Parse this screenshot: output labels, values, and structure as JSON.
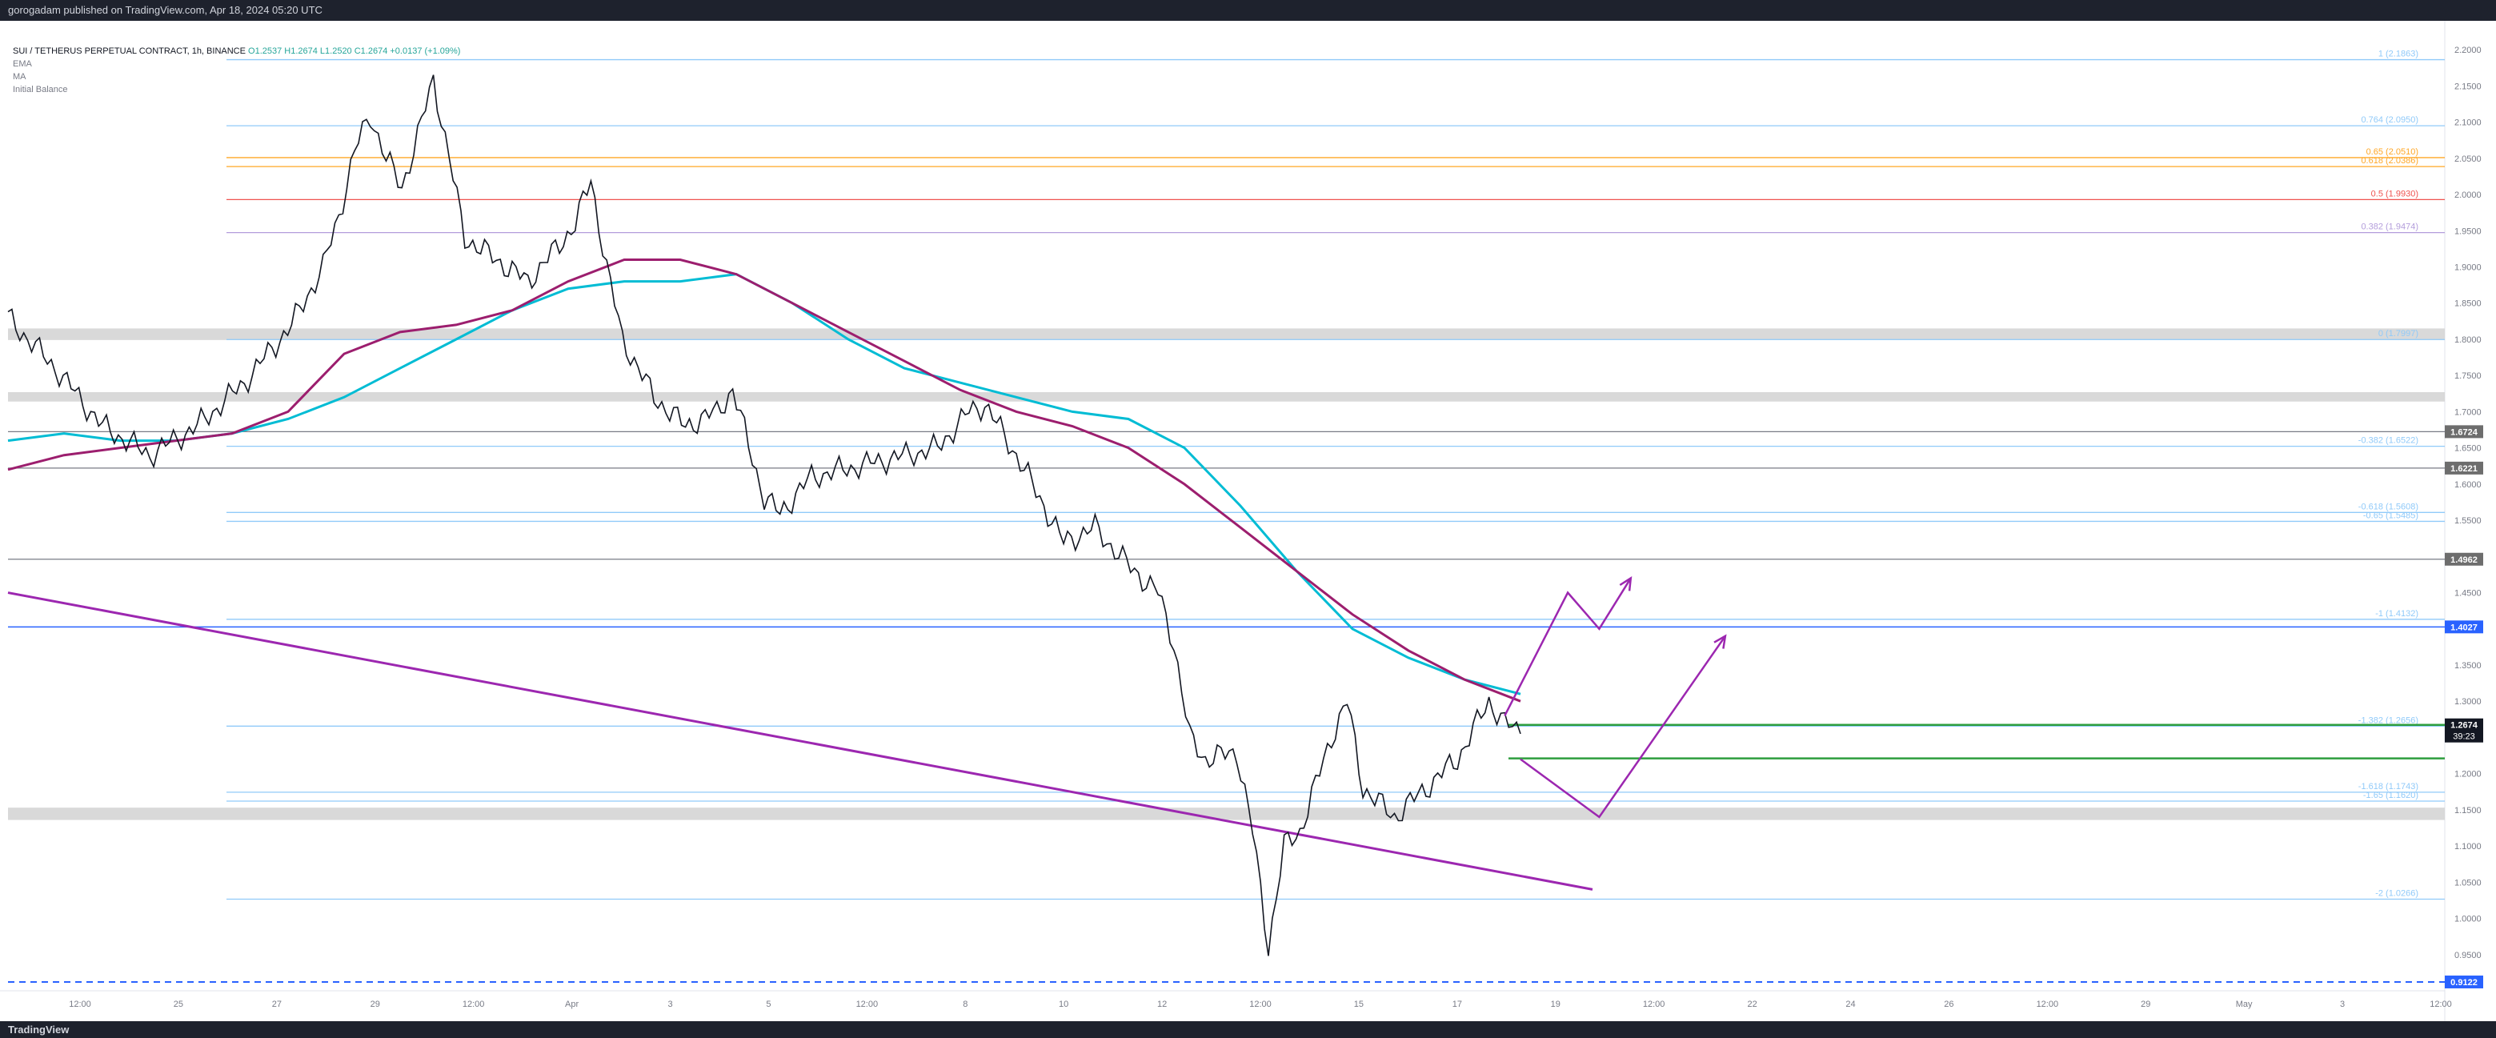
{
  "header": {
    "published": "gorogadam published on TradingView.com, Apr 18, 2024 05:20 UTC"
  },
  "legend": {
    "symbol": "SUI / TETHERUS PERPETUAL CONTRACT, 1h, BINANCE",
    "ohlc": "O1.2537 H1.2674 L1.2520 C1.2674 +0.0137 (+1.09%)",
    "indicators": [
      "EMA",
      "MA",
      "Initial Balance"
    ]
  },
  "footer": {
    "brand": "TradingView"
  },
  "colors": {
    "ema": "#00bcd4",
    "ma": "#9c1e6e",
    "trendline": "#9c27b0",
    "projection": "#9c27b0",
    "support_zone": "#d5d5d5",
    "blue_line": "#2962ff",
    "green_line": "#2e9e3e",
    "fib_light": "#90caf9",
    "fib_red": "#ef5350",
    "fib_orange": "#ffa726",
    "fib_purple": "#b39ddb"
  },
  "chart_data": {
    "type": "line",
    "title": "",
    "ylim": [
      0.9,
      2.24
    ],
    "y_ticks": [
      "2.2000",
      "2.1500",
      "2.1000",
      "2.0500",
      "2.0000",
      "1.9500",
      "1.9000",
      "1.8500",
      "1.8000",
      "1.7500",
      "1.7000",
      "1.6500",
      "1.6000",
      "1.5500",
      "1.5000",
      "1.4500",
      "1.4000",
      "1.3500",
      "1.3000",
      "1.2500",
      "1.2000",
      "1.1500",
      "1.1000",
      "1.0500",
      "1.0000",
      "0.9500"
    ],
    "x_ticks": [
      "12:00",
      "25",
      "27",
      "29",
      "12:00",
      "Apr",
      "3",
      "5",
      "12:00",
      "8",
      "10",
      "12",
      "12:00",
      "15",
      "17",
      "19",
      "12:00",
      "22",
      "24",
      "26",
      "12:00",
      "29",
      "May",
      "3",
      "12:00"
    ],
    "price_path": [
      [
        0,
        1.83
      ],
      [
        3,
        1.76
      ],
      [
        6,
        1.68
      ],
      [
        9,
        1.64
      ],
      [
        12,
        1.68
      ],
      [
        15,
        1.74
      ],
      [
        18,
        1.82
      ],
      [
        20,
        1.9
      ],
      [
        21,
        1.97
      ],
      [
        22,
        2.06
      ],
      [
        23,
        2.11
      ],
      [
        24,
        2.05
      ],
      [
        25,
        2.01
      ],
      [
        26,
        2.08
      ],
      [
        27,
        2.16
      ],
      [
        28,
        2.05
      ],
      [
        29,
        1.94
      ],
      [
        31,
        1.91
      ],
      [
        33,
        1.88
      ],
      [
        35,
        1.93
      ],
      [
        36,
        1.96
      ],
      [
        37,
        2.02
      ],
      [
        38,
        1.9
      ],
      [
        39,
        1.8
      ],
      [
        40,
        1.76
      ],
      [
        41,
        1.72
      ],
      [
        43,
        1.68
      ],
      [
        45,
        1.7
      ],
      [
        46,
        1.73
      ],
      [
        48,
        1.58
      ],
      [
        49,
        1.56
      ],
      [
        51,
        1.61
      ],
      [
        55,
        1.63
      ],
      [
        59,
        1.65
      ],
      [
        61,
        1.7
      ],
      [
        62,
        1.71
      ],
      [
        64,
        1.64
      ],
      [
        66,
        1.56
      ],
      [
        67,
        1.52
      ],
      [
        69,
        1.54
      ],
      [
        71,
        1.49
      ],
      [
        73,
        1.45
      ],
      [
        74,
        1.38
      ],
      [
        75,
        1.25
      ],
      [
        76,
        1.22
      ],
      [
        78,
        1.23
      ],
      [
        79,
        1.12
      ],
      [
        80,
        0.96
      ],
      [
        81,
        1.1
      ],
      [
        82,
        1.12
      ],
      [
        84,
        1.25
      ],
      [
        85,
        1.3
      ],
      [
        86,
        1.18
      ],
      [
        88,
        1.14
      ],
      [
        90,
        1.18
      ],
      [
        92,
        1.22
      ],
      [
        93,
        1.26
      ],
      [
        94,
        1.3
      ],
      [
        95,
        1.27
      ],
      [
        96,
        1.255
      ]
    ],
    "price_x_domain": [
      0,
      96
    ],
    "series": [
      {
        "name": "EMA",
        "values": [
          1.66,
          1.67,
          1.66,
          1.66,
          1.67,
          1.69,
          1.72,
          1.76,
          1.8,
          1.84,
          1.87,
          1.88,
          1.88,
          1.89,
          1.85,
          1.8,
          1.76,
          1.74,
          1.72,
          1.7,
          1.69,
          1.65,
          1.57,
          1.48,
          1.4,
          1.36,
          1.33,
          1.31
        ]
      },
      {
        "name": "MA",
        "values": [
          1.62,
          1.64,
          1.65,
          1.66,
          1.67,
          1.7,
          1.78,
          1.81,
          1.82,
          1.84,
          1.88,
          1.91,
          1.91,
          1.89,
          1.85,
          1.81,
          1.77,
          1.73,
          1.7,
          1.68,
          1.65,
          1.6,
          1.54,
          1.48,
          1.42,
          1.37,
          1.33,
          1.3
        ]
      }
    ],
    "series_x_domain": [
      0,
      96
    ],
    "fib_levels": [
      {
        "label": "1 (2.1863)",
        "value": 2.1863,
        "color": "#90caf9"
      },
      {
        "label": "0.764 (2.0950)",
        "value": 2.095,
        "color": "#90caf9"
      },
      {
        "label": "0.65 (2.0510)",
        "value": 2.051,
        "color": "#ffa726"
      },
      {
        "label": "0.618 (2.0386)",
        "value": 2.0386,
        "color": "#ffa726"
      },
      {
        "label": "0.5 (1.9930)",
        "value": 1.993,
        "color": "#ef5350"
      },
      {
        "label": "0.382 (1.9474)",
        "value": 1.9474,
        "color": "#b39ddb"
      },
      {
        "label": "0 (1.7997)",
        "value": 1.7997,
        "color": "#90caf9"
      },
      {
        "label": "-0.382 (1.6522)",
        "value": 1.6522,
        "color": "#90caf9"
      },
      {
        "label": "-0.618 (1.5608)",
        "value": 1.5608,
        "color": "#90caf9"
      },
      {
        "label": "-0.65 (1.5485)",
        "value": 1.5485,
        "color": "#90caf9"
      },
      {
        "label": "-1 (1.4132)",
        "value": 1.4132,
        "color": "#90caf9"
      },
      {
        "label": "-1.382 (1.2656)",
        "value": 1.2656,
        "color": "#90caf9"
      },
      {
        "label": "-1.618 (1.1743)",
        "value": 1.1743,
        "color": "#90caf9"
      },
      {
        "label": "-1.65 (1.1620)",
        "value": 1.162,
        "color": "#90caf9"
      },
      {
        "label": "-2 (1.0266)",
        "value": 1.0266,
        "color": "#90caf9"
      }
    ],
    "price_labels": [
      {
        "label": "1.6724",
        "value": 1.6724,
        "bg": "#6d6d6d"
      },
      {
        "label": "1.6221",
        "value": 1.6221,
        "bg": "#6d6d6d"
      },
      {
        "label": "1.4962",
        "value": 1.4962,
        "bg": "#6d6d6d"
      },
      {
        "label": "1.4027",
        "value": 1.4027,
        "bg": "#2962ff"
      },
      {
        "label": "1.2674",
        "value": 1.2674,
        "bg": "#131722",
        "sub": "39:23"
      },
      {
        "label": "0.9122",
        "value": 0.9122,
        "bg": "#2962ff"
      }
    ],
    "grey_lines": [
      1.6724,
      1.6221,
      1.4962
    ],
    "blue_line": 1.4027,
    "dashed_line": 0.9122,
    "green_lines": [
      1.2674,
      1.221
    ],
    "zones": [
      {
        "from": 1.815,
        "to": 1.799
      },
      {
        "from": 1.727,
        "to": 1.714
      },
      {
        "from": 1.153,
        "to": 1.136
      }
    ],
    "trendline": {
      "from": [
        0,
        1.45
      ],
      "to": [
        100,
        1.04
      ]
    },
    "projection_1": [
      [
        95,
        1.28
      ],
      [
        99,
        1.45
      ],
      [
        101,
        1.4
      ],
      [
        103,
        1.47
      ]
    ],
    "projection_2": [
      [
        96,
        1.22
      ],
      [
        101,
        1.14
      ],
      [
        109,
        1.39
      ]
    ]
  }
}
